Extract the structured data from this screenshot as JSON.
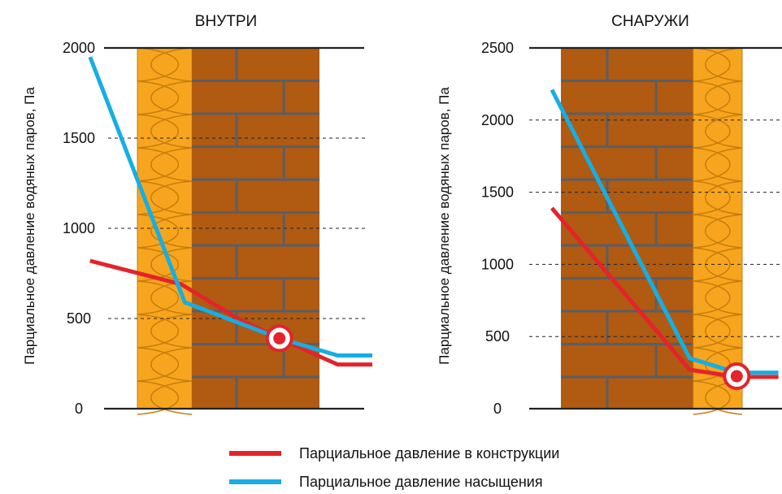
{
  "colors": {
    "brick": "#b05a12",
    "mortar": "#5a5f66",
    "insulation": "#f7a51e",
    "insulation_line": "#c77d0c",
    "actual": "#e4232b",
    "saturation": "#16aee3",
    "grid": "#222222"
  },
  "chart_data": [
    {
      "type": "line",
      "title": "ВНУТРИ",
      "xlabel": "",
      "ylabel": "Парциальное давление водяных паров, Па",
      "ylim": [
        0,
        2000
      ],
      "yticks": [
        "0",
        "500",
        "1000",
        "1500",
        "2000"
      ],
      "grid": "dashed horizontal",
      "x_unit": "relative position through wall (0 = inner face, 1 = outer face)",
      "layers": [
        {
          "name": "insulation",
          "from": 0.0,
          "to": 0.3
        },
        {
          "name": "brick",
          "from": 0.3,
          "to": 1.0
        }
      ],
      "series": [
        {
          "name": "Парциальное давление в конструкции",
          "color": "#e4232b",
          "x": [
            -0.26,
            0.24,
            0.55,
            0.78,
            1.0,
            1.1,
            1.29
          ],
          "y": [
            820,
            690,
            500,
            390,
            290,
            245,
            245
          ]
        },
        {
          "name": "Парциальное давление насыщения",
          "color": "#16aee3",
          "x": [
            -0.26,
            0.26,
            0.78,
            1.1,
            1.29
          ],
          "y": [
            1950,
            590,
            390,
            295,
            295
          ]
        }
      ],
      "condensation_point": {
        "x": 0.78,
        "y": 390
      }
    },
    {
      "type": "line",
      "title": "СНАРУЖИ",
      "xlabel": "",
      "ylabel": "Парциальное давление водяных паров, Па",
      "ylim": [
        0,
        2500
      ],
      "yticks": [
        "0",
        "500",
        "1000",
        "1500",
        "2000",
        "2500"
      ],
      "grid": "dashed horizontal",
      "x_unit": "relative position through wall (0 = inner face, 1 = outer face)",
      "layers": [
        {
          "name": "brick",
          "from": 0.0,
          "to": 0.73
        },
        {
          "name": "insulation",
          "from": 0.73,
          "to": 1.0
        }
      ],
      "series": [
        {
          "name": "Парциальное давление в конструкции",
          "color": "#e4232b",
          "x": [
            -0.05,
            0.71,
            0.97,
            1.2
          ],
          "y": [
            1390,
            270,
            220,
            220
          ]
        },
        {
          "name": "Парциальное давление насыщения",
          "color": "#16aee3",
          "x": [
            -0.05,
            0.71,
            0.97,
            1.2
          ],
          "y": [
            2210,
            350,
            250,
            250
          ]
        }
      ],
      "condensation_point": {
        "x": 0.97,
        "y": 225
      }
    }
  ],
  "legend": {
    "items": [
      {
        "label": "Парциальное давление в конструкции",
        "color": "#e4232b"
      },
      {
        "label": "Парциальное давление насыщения",
        "color": "#16aee3"
      }
    ]
  }
}
